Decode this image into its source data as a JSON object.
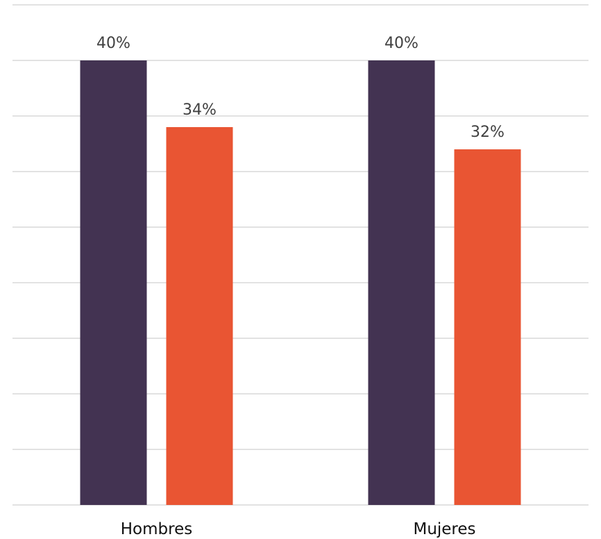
{
  "chart_data": {
    "type": "bar",
    "categories": [
      "Hombres",
      "Mujeres"
    ],
    "series": [
      {
        "values": [
          40,
          40
        ],
        "labels": [
          "40%",
          "40%"
        ],
        "color": "#433352"
      },
      {
        "values": [
          34,
          32
        ],
        "labels": [
          "34%",
          "32%"
        ],
        "color": "#e95533"
      }
    ],
    "title": "",
    "xlabel": "",
    "ylabel": "",
    "ylim": [
      0,
      45
    ],
    "y_unit": "%",
    "grid": true,
    "y_gridline_step": 5,
    "y_axis_labels_shown": false,
    "legend": "none"
  }
}
